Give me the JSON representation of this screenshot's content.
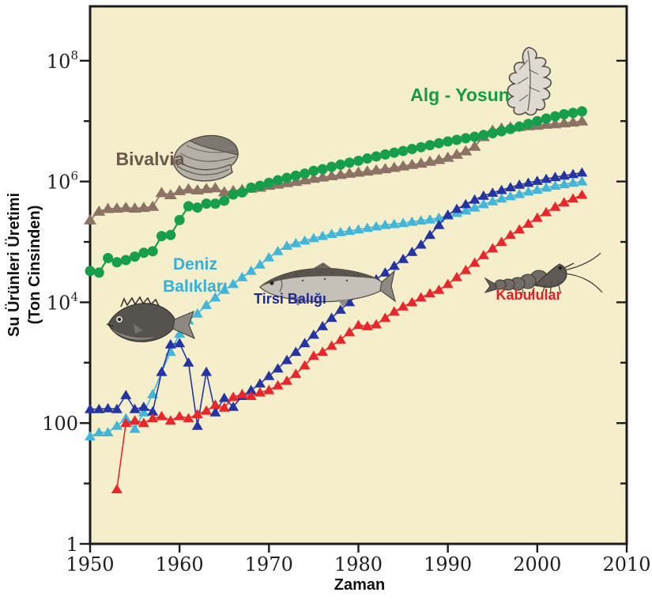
{
  "figure": {
    "background": "#ffffff",
    "plot_background": "#f4eeca",
    "border_color": "#1c1c1c"
  },
  "axes": {
    "x": {
      "title": "Zaman",
      "min": 1950,
      "max": 2010,
      "ticks": [
        1950,
        1960,
        1970,
        1980,
        1990,
        2000,
        2010
      ]
    },
    "y": {
      "title_line1": "Su Ürünleri Üretimi",
      "title_line2": "(Ton Cinsinden)",
      "scale": "log",
      "major_ticks": [
        {
          "value": 1,
          "label": "1"
        },
        {
          "value": 100,
          "label": "100"
        },
        {
          "value": 10000,
          "label": "10^4"
        },
        {
          "value": 1000000,
          "label": "10^6"
        },
        {
          "value": 100000000,
          "label": "10^8"
        }
      ],
      "minor_ticks": [
        10,
        1000,
        100000,
        10000000
      ]
    }
  },
  "chart_data": {
    "type": "line",
    "y_scale": "log",
    "xlim": [
      1950,
      2010
    ],
    "ylim": [
      1,
      100000000
    ],
    "grid": false,
    "legend": "in-plot colored labels",
    "x": [
      1950,
      1951,
      1952,
      1953,
      1954,
      1955,
      1956,
      1957,
      1958,
      1959,
      1960,
      1961,
      1962,
      1963,
      1964,
      1965,
      1966,
      1967,
      1968,
      1969,
      1970,
      1971,
      1972,
      1973,
      1974,
      1975,
      1976,
      1977,
      1978,
      1979,
      1980,
      1981,
      1982,
      1983,
      1984,
      1985,
      1986,
      1987,
      1988,
      1989,
      1990,
      1991,
      1992,
      1993,
      1994,
      1995,
      1996,
      1997,
      1998,
      1999,
      2000,
      2001,
      2002,
      2003,
      2004,
      2005
    ],
    "series": [
      {
        "name": "bivalvia",
        "label": "Bivalvia",
        "color": "#8b7265",
        "label_color": "#6b584a",
        "marker": "triangle",
        "values": [
          230000,
          320000,
          355000,
          360000,
          370000,
          360000,
          370000,
          385000,
          650000,
          600000,
          700000,
          750000,
          720000,
          760000,
          780000,
          670000,
          700000,
          730000,
          770000,
          800000,
          860000,
          900000,
          950000,
          1000000,
          1060000,
          1120000,
          1180000,
          1240000,
          1300000,
          1360000,
          1420000,
          1480000,
          1550000,
          1620000,
          1700000,
          1800000,
          1900000,
          2000000,
          2150000,
          2300000,
          2500000,
          2800000,
          3200000,
          3800000,
          5500000,
          7000000,
          7600000,
          7900000,
          8100000,
          8300000,
          8500000,
          8800000,
          9000000,
          9300000,
          9600000,
          10000000
        ]
      },
      {
        "name": "alg-yosun",
        "label": "Alg - Yosun",
        "color": "#179e4d",
        "label_color": "#149b43",
        "marker": "circle",
        "values": [
          33000,
          31000,
          54000,
          46000,
          50000,
          57000,
          66000,
          70000,
          125000,
          130000,
          230000,
          390000,
          370000,
          430000,
          430000,
          480000,
          610000,
          660000,
          790000,
          850000,
          950000,
          1050000,
          1150000,
          1250000,
          1350000,
          1500000,
          1600000,
          1750000,
          1900000,
          2050000,
          2200000,
          2400000,
          2600000,
          2800000,
          3000000,
          3200000,
          3450000,
          3700000,
          4000000,
          4300000,
          4600000,
          4900000,
          5200000,
          5500000,
          5900000,
          6300000,
          6800000,
          7400000,
          8100000,
          9000000,
          10000000,
          11000000,
          12000000,
          13000000,
          13700000,
          14500000
        ]
      },
      {
        "name": "deniz-baliklari",
        "label": "Deniz Balıkları",
        "label_lines": [
          "Deniz",
          "Balıkları"
        ],
        "color": "#41b6da",
        "label_color": "#35aed8",
        "marker": "triangle",
        "values": [
          60,
          70,
          70,
          90,
          120,
          80,
          150,
          300,
          700,
          1500,
          3000,
          5000,
          6500,
          9000,
          12000,
          16000,
          20000,
          26000,
          33000,
          42000,
          55000,
          70000,
          86000,
          95000,
          105000,
          115000,
          125000,
          135000,
          145000,
          152000,
          160000,
          170000,
          180000,
          190000,
          197000,
          205000,
          215000,
          225000,
          235000,
          250000,
          270000,
          300000,
          330000,
          370000,
          420000,
          470000,
          520000,
          570000,
          620000,
          680000,
          730000,
          790000,
          850000,
          900000,
          950000,
          1000000
        ]
      },
      {
        "name": "tirsi-baligi",
        "label": "Tirsi Balığı",
        "color": "#2434a2",
        "label_color": "#1e2b95",
        "marker": "triangle",
        "values": [
          170,
          170,
          175,
          170,
          290,
          170,
          185,
          155,
          700,
          2000,
          2100,
          1000,
          90,
          700,
          150,
          260,
          185,
          280,
          350,
          450,
          600,
          800,
          1100,
          1500,
          2100,
          2900,
          4000,
          5500,
          7500,
          10000,
          14000,
          18000,
          24000,
          31000,
          40000,
          52000,
          68000,
          90000,
          130000,
          190000,
          280000,
          350000,
          420000,
          500000,
          580000,
          650000,
          720000,
          800000,
          880000,
          950000,
          1020000,
          1100000,
          1180000,
          1250000,
          1320000,
          1400000
        ]
      },
      {
        "name": "kabulular",
        "label": "Kabulular",
        "color": "#e8262b",
        "label_color": "#e21f26",
        "marker": "triangle",
        "values": [
          null,
          null,
          null,
          8,
          100,
          110,
          100,
          120,
          130,
          110,
          130,
          120,
          140,
          160,
          200,
          180,
          270,
          300,
          280,
          320,
          350,
          420,
          500,
          650,
          900,
          1300,
          1500,
          1900,
          2400,
          3200,
          4200,
          4000,
          4300,
          5500,
          7000,
          8500,
          10000,
          12000,
          14000,
          16000,
          20000,
          26000,
          34000,
          45000,
          60000,
          78000,
          100000,
          130000,
          160000,
          200000,
          250000,
          310000,
          380000,
          450000,
          520000,
          600000
        ]
      }
    ]
  },
  "icons": [
    {
      "name": "bivalve-clam-illustration"
    },
    {
      "name": "algae-illustration"
    },
    {
      "name": "tirsi-fish-illustration"
    },
    {
      "name": "deniz-fish-illustration"
    },
    {
      "name": "shrimp-illustration"
    }
  ]
}
